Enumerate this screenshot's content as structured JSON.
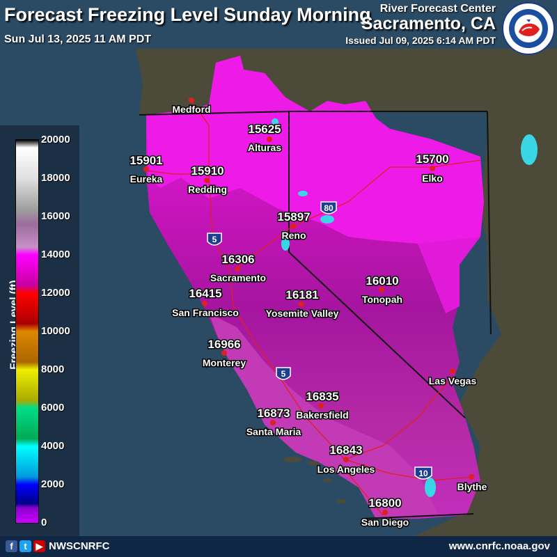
{
  "header": {
    "title": "Forecast Freezing Level Sunday Morning",
    "valid_time": "Sun Jul 13, 2025 11 AM PDT",
    "org": "River Forecast Center",
    "office": "Sacramento, CA",
    "issued": "Issued Jul 09, 2025 6:14 AM PDT"
  },
  "logo": {
    "icon": "nws-logo-icon",
    "text": "NATIONAL WEATHER SERVICE"
  },
  "legend": {
    "title": "Freezing Level (ft)",
    "ticks": [
      "20000",
      "18000",
      "16000",
      "14000",
      "12000",
      "10000",
      "8000",
      "6000",
      "4000",
      "2000",
      "0"
    ],
    "colors": [
      "#ffffff",
      "#c8c8c8",
      "#9b6d9b",
      "#ff00ff",
      "#ff0000",
      "#cc8800",
      "#cccc00",
      "#00cc77",
      "#00ffff",
      "#0000ff",
      "#cc00ff"
    ]
  },
  "cities": [
    {
      "name": "Medford",
      "value": ""
    },
    {
      "name": "Eureka",
      "value": "15901"
    },
    {
      "name": "Alturas",
      "value": "15625"
    },
    {
      "name": "Redding",
      "value": "15910"
    },
    {
      "name": "Elko",
      "value": "15700"
    },
    {
      "name": "Reno",
      "value": "15897"
    },
    {
      "name": "Sacramento",
      "value": "16306"
    },
    {
      "name": "San Francisco",
      "value": "16415"
    },
    {
      "name": "Tonopah",
      "value": "16010"
    },
    {
      "name": "Yosemite Valley",
      "value": "16181"
    },
    {
      "name": "Monterey",
      "value": "16966"
    },
    {
      "name": "Las Vegas",
      "value": ""
    },
    {
      "name": "Bakersfield",
      "value": "16835"
    },
    {
      "name": "Santa Maria",
      "value": "16873"
    },
    {
      "name": "Los Angeles",
      "value": "16843"
    },
    {
      "name": "Blythe",
      "value": ""
    },
    {
      "name": "San Diego",
      "value": "16800"
    }
  ],
  "highways": [
    "80",
    "5",
    "5",
    "10"
  ],
  "footer": {
    "icons": [
      "facebook-icon",
      "twitter-icon",
      "youtube-icon"
    ],
    "handle": "NWSCNRFC",
    "website": "www.cnrfc.noaa.gov"
  }
}
